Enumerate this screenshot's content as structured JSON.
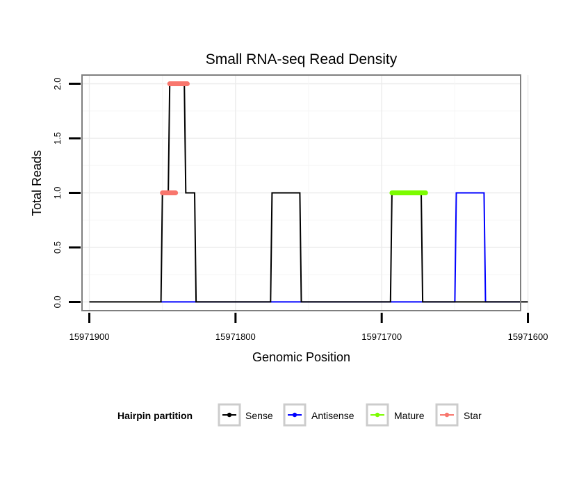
{
  "chart_data": {
    "type": "line",
    "title": "Small RNA-seq Read Density",
    "xlabel": "Genomic Position",
    "ylabel": "Total Reads",
    "x_reversed": true,
    "xlim": [
      15971905,
      15971605
    ],
    "ylim": [
      -0.08,
      2.08
    ],
    "x_ticks": [
      15971900,
      15971800,
      15971700,
      15971600
    ],
    "x_tick_labels": [
      "15971900",
      "15971800",
      "15971700",
      "15971600"
    ],
    "y_ticks": [
      0.0,
      0.5,
      1.0,
      1.5,
      2.0
    ],
    "y_tick_labels": [
      "0.0",
      "0.5",
      "1.0",
      "1.5",
      "2.0"
    ],
    "grid": true,
    "legend_position": "bottom",
    "legend_title": "Hairpin partition",
    "series": [
      {
        "name": "Sense",
        "color": "#000000",
        "role": "line",
        "points": [
          [
            15971900,
            0
          ],
          [
            15971851,
            0
          ],
          [
            15971850,
            1
          ],
          [
            15971846,
            1
          ],
          [
            15971845,
            2
          ],
          [
            15971835,
            2
          ],
          [
            15971834,
            1
          ],
          [
            15971828,
            1
          ],
          [
            15971827,
            0
          ],
          [
            15971776,
            0
          ],
          [
            15971775,
            1
          ],
          [
            15971756,
            1
          ],
          [
            15971755,
            0
          ],
          [
            15971694,
            0
          ],
          [
            15971693,
            1
          ],
          [
            15971673,
            1
          ],
          [
            15971672,
            0
          ],
          [
            15971600,
            0
          ]
        ]
      },
      {
        "name": "Antisense",
        "color": "#0000ff",
        "role": "line",
        "points": [
          [
            15971851,
            0
          ],
          [
            15971827,
            0
          ],
          [
            15971776,
            0
          ],
          [
            15971755,
            0
          ],
          [
            15971694,
            0
          ],
          [
            15971672,
            0
          ],
          [
            15971650,
            0
          ],
          [
            15971649,
            1
          ],
          [
            15971630,
            1
          ],
          [
            15971629,
            0
          ],
          [
            15971605,
            0
          ]
        ]
      },
      {
        "name": "Mature",
        "color": "#7cfc00",
        "role": "segment",
        "segments": [
          [
            15971693,
            15971670,
            1
          ]
        ]
      },
      {
        "name": "Star",
        "color": "#f8766d",
        "role": "segment",
        "segments": [
          [
            15971850,
            15971841,
            1
          ],
          [
            15971845,
            15971833,
            2
          ]
        ]
      }
    ]
  }
}
